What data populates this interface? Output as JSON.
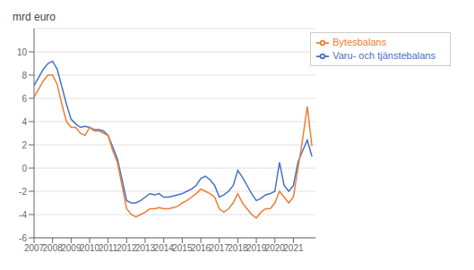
{
  "chart_data": {
    "type": "line",
    "ylabel": "mrd euro",
    "x": [
      2007.0,
      2007.25,
      2007.5,
      2007.75,
      2008.0,
      2008.25,
      2008.5,
      2008.75,
      2009.0,
      2009.25,
      2009.5,
      2009.75,
      2010.0,
      2010.25,
      2010.5,
      2010.75,
      2011.0,
      2011.25,
      2011.5,
      2011.75,
      2012.0,
      2012.25,
      2012.5,
      2012.75,
      2013.0,
      2013.25,
      2013.5,
      2013.75,
      2014.0,
      2014.25,
      2014.5,
      2014.75,
      2015.0,
      2015.25,
      2015.5,
      2015.75,
      2016.0,
      2016.25,
      2016.5,
      2016.75,
      2017.0,
      2017.25,
      2017.5,
      2017.75,
      2018.0,
      2018.25,
      2018.5,
      2018.75,
      2019.0,
      2019.25,
      2019.5,
      2019.75,
      2020.0,
      2020.25,
      2020.5,
      2020.75,
      2021.0,
      2021.25,
      2021.5,
      2021.75,
      2022.0
    ],
    "series": [
      {
        "name": "Varu- och tjänstebalans",
        "color": "#4472C4",
        "values": [
          7.1,
          7.8,
          8.5,
          9.0,
          9.2,
          8.5,
          7.0,
          5.5,
          4.2,
          3.8,
          3.5,
          3.6,
          3.5,
          3.3,
          3.3,
          3.2,
          2.8,
          1.8,
          0.8,
          -1.0,
          -2.8,
          -3.0,
          -3.0,
          -2.8,
          -2.5,
          -2.2,
          -2.3,
          -2.2,
          -2.5,
          -2.5,
          -2.4,
          -2.3,
          -2.2,
          -2.0,
          -1.8,
          -1.5,
          -0.9,
          -0.7,
          -1.0,
          -1.5,
          -2.5,
          -2.3,
          -2.0,
          -1.5,
          -0.2,
          -0.8,
          -1.5,
          -2.2,
          -2.8,
          -2.6,
          -2.3,
          -2.2,
          -2.0,
          0.5,
          -1.5,
          -2.0,
          -1.5,
          0.5,
          1.5,
          2.4,
          1.0
        ]
      },
      {
        "name": "Bytesbalans",
        "color": "#ED7D31",
        "values": [
          6.1,
          6.8,
          7.5,
          8.0,
          8.0,
          7.2,
          5.5,
          4.0,
          3.5,
          3.5,
          3.0,
          2.8,
          3.5,
          3.2,
          3.2,
          3.0,
          2.8,
          1.5,
          0.5,
          -1.5,
          -3.5,
          -4.0,
          -4.2,
          -4.0,
          -3.8,
          -3.5,
          -3.5,
          -3.4,
          -3.5,
          -3.5,
          -3.4,
          -3.3,
          -3.0,
          -2.8,
          -2.5,
          -2.2,
          -1.8,
          -2.0,
          -2.2,
          -2.5,
          -3.5,
          -3.8,
          -3.5,
          -3.0,
          -2.2,
          -3.0,
          -3.5,
          -4.0,
          -4.3,
          -3.8,
          -3.5,
          -3.5,
          -3.0,
          -2.0,
          -2.5,
          -3.0,
          -2.5,
          0.0,
          2.5,
          5.3,
          1.9
        ]
      }
    ],
    "xlim": [
      2007,
      2022.2
    ],
    "xticks": [
      2007,
      2008,
      2009,
      2010,
      2011,
      2012,
      2013,
      2014,
      2015,
      2016,
      2017,
      2018,
      2019,
      2020,
      2021
    ],
    "ylim": [
      -6,
      12
    ],
    "yticks": [
      -6,
      -4,
      -2,
      0,
      2,
      4,
      6,
      8,
      10
    ],
    "grid": "y",
    "legend": "upper right"
  }
}
